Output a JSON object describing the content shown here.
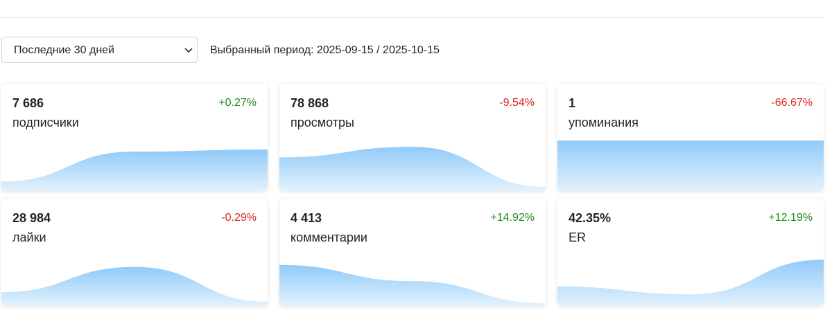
{
  "filter": {
    "selected": "Последние 30 дней",
    "period": "Выбранный период: 2025-09-15 / 2025-10-15"
  },
  "cards": [
    {
      "value": "7 686",
      "change": "+0.27%",
      "label": "подписчики",
      "trend": [
        18,
        75,
        79
      ]
    },
    {
      "value": "78 868",
      "change": "-9.54%",
      "label": "просмотры",
      "trend": [
        64,
        84,
        8
      ]
    },
    {
      "value": "1",
      "change": "-66.67%",
      "label": "упоминания",
      "trend": [
        96,
        96,
        96
      ]
    },
    {
      "value": "28 984",
      "change": "-0.29%",
      "label": "лайки",
      "trend": [
        26,
        74,
        8
      ]
    },
    {
      "value": "4 413",
      "change": "+14.92%",
      "label": "комментарии",
      "trend": [
        78,
        47,
        5
      ]
    },
    {
      "value": "42.35%",
      "change": "+12.19%",
      "label": "ER",
      "trend": [
        37,
        22,
        88
      ]
    }
  ]
}
